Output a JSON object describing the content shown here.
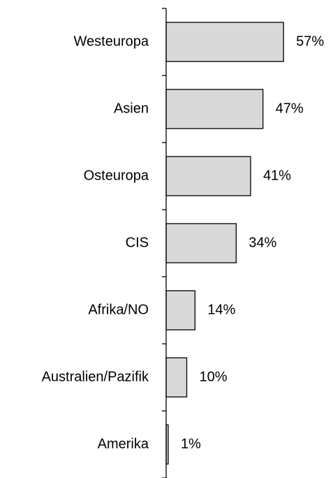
{
  "chart_data": {
    "type": "barh",
    "categories": [
      "Westeuropa",
      "Asien",
      "Osteuropa",
      "CIS",
      "Afrika/NO",
      "Australien/Pazifik",
      "Amerika"
    ],
    "values": [
      57,
      47,
      41,
      34,
      14,
      10,
      1
    ],
    "value_labels": [
      "57%",
      "47%",
      "41%",
      "34%",
      "14%",
      "10%",
      "1%"
    ],
    "color": "#d9d9d9",
    "xlim": [
      0,
      80
    ]
  }
}
